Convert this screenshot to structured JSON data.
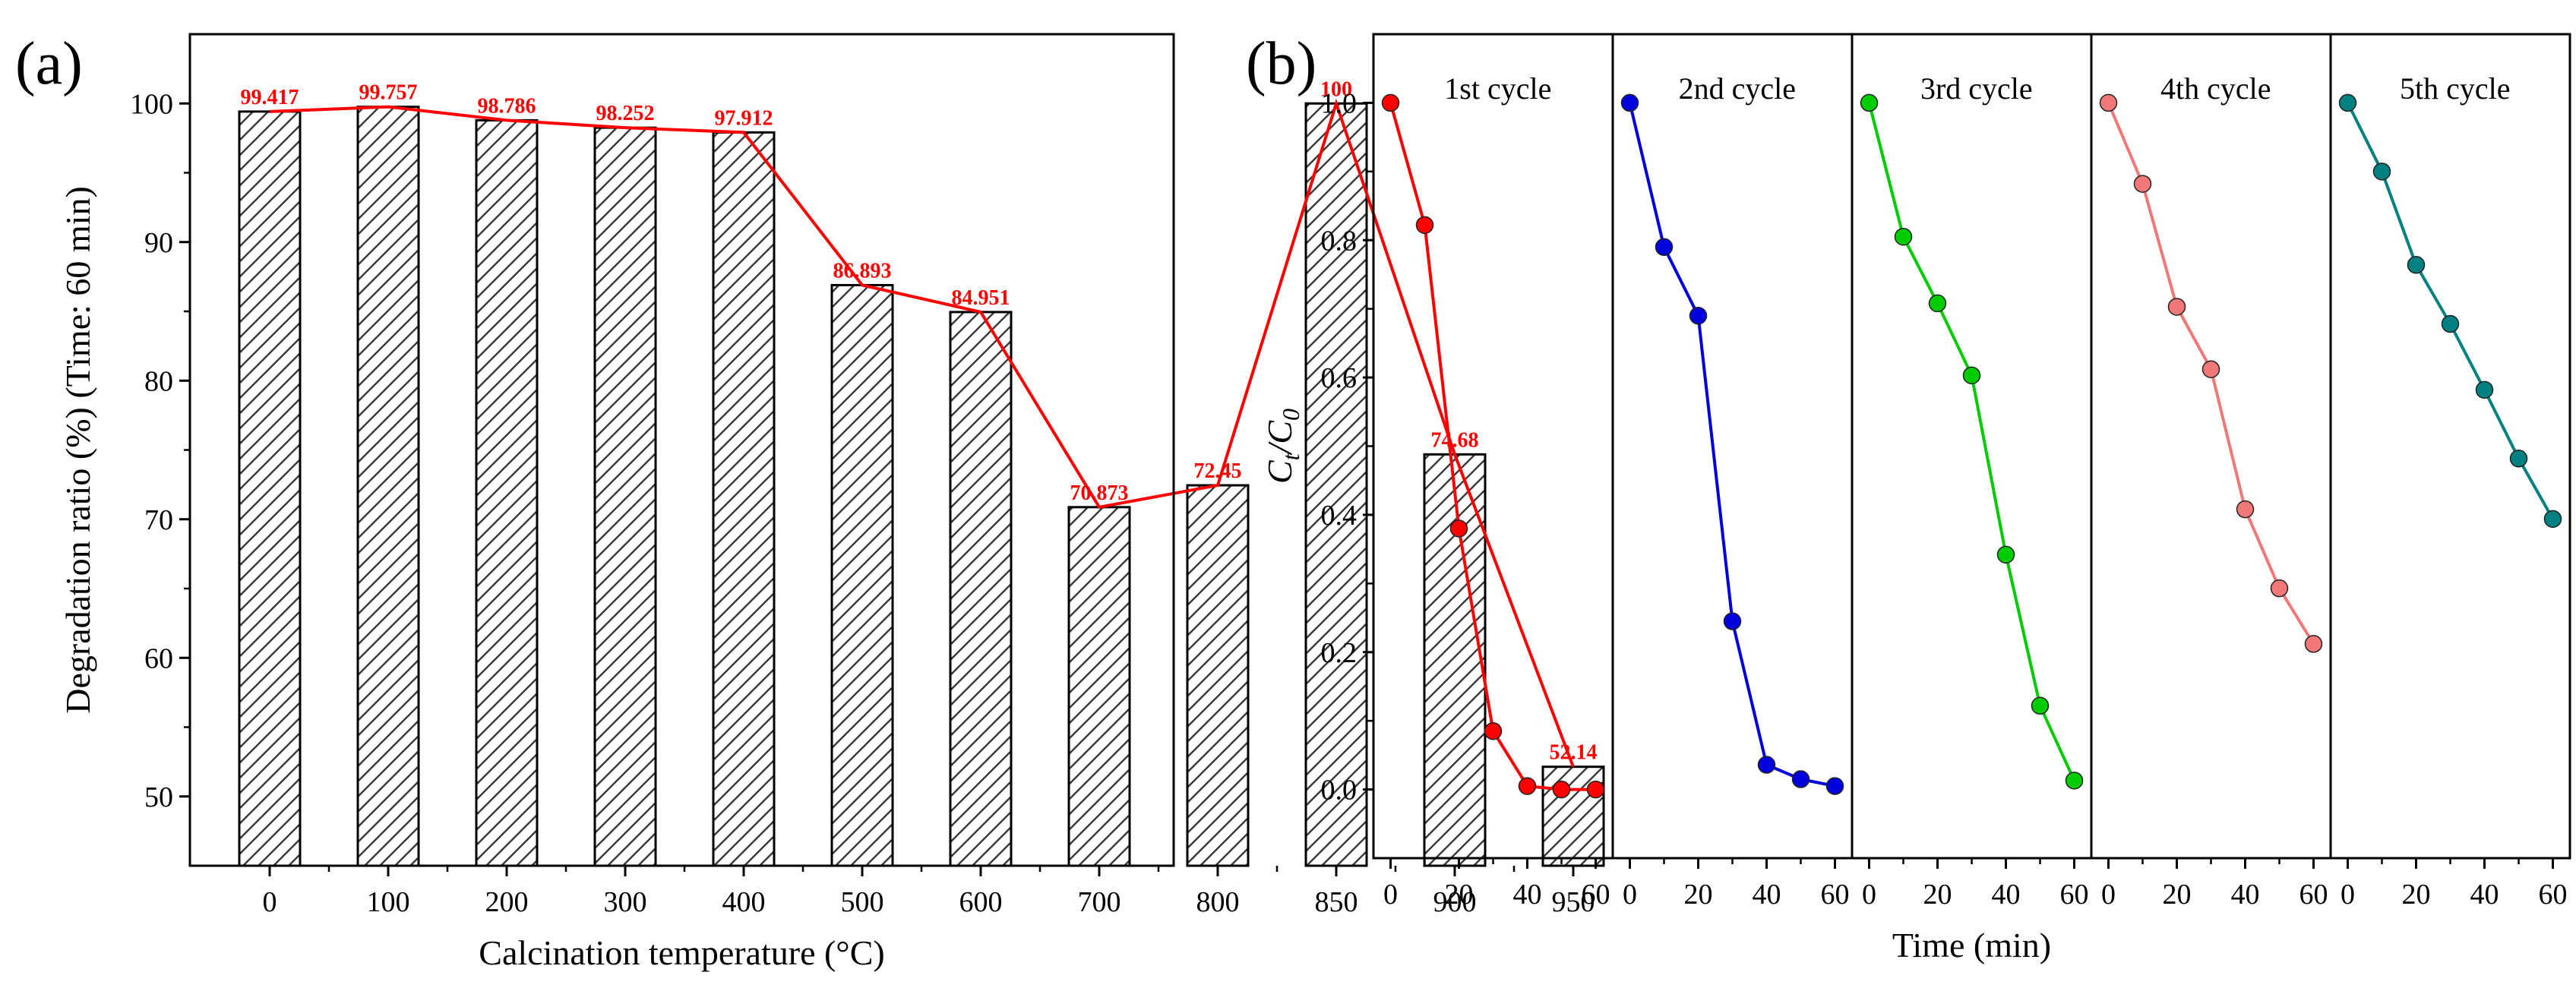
{
  "figure": {
    "panel_a_label": "(a)",
    "panel_b_label": "(b)"
  },
  "chart_data": [
    {
      "type": "bar",
      "panel": "(a)",
      "xlabel": "Calcination temperature (°C)",
      "ylabel": "Degradation ratio (%) (Time: 60 min)",
      "ylim": [
        45,
        105
      ],
      "yticks": [
        50,
        60,
        70,
        80,
        90,
        100
      ],
      "categories": [
        "0",
        "100",
        "200",
        "300",
        "400",
        "500",
        "600",
        "700",
        "800",
        "850",
        "900",
        "950"
      ],
      "values": [
        99.417,
        99.757,
        98.786,
        98.252,
        97.912,
        86.893,
        84.951,
        70.873,
        72.45,
        100,
        74.68,
        52.14
      ],
      "data_labels": [
        "99.417",
        "99.757",
        "98.786",
        "98.252",
        "97.912",
        "86.893",
        "84.951",
        "70.873",
        "72.45",
        "100",
        "74.68",
        "52.14"
      ],
      "bar_fill": "hatched",
      "line_overlay": true,
      "line_color": "#ff0000",
      "label_color": "#ff0000",
      "grid": false
    },
    {
      "type": "line",
      "panel": "(b)",
      "xlabel": "Time (min)",
      "ylabel": "C",
      "ylabel_sub_1": "t",
      "ylabel_sep": "/C",
      "ylabel_sub_2": "0",
      "ylim": [
        -0.1,
        1.1
      ],
      "yticks": [
        "0.0",
        "0.2",
        "0.4",
        "0.6",
        "0.8",
        "1.0"
      ],
      "xlim": [
        -5,
        65
      ],
      "xticks": [
        "0",
        "20",
        "40",
        "60"
      ],
      "x": [
        0,
        10,
        20,
        30,
        40,
        50,
        60
      ],
      "grid": false,
      "series": [
        {
          "name": "1st cycle",
          "color": "#ff0000",
          "values": [
            1.0,
            0.822,
            0.38,
            0.085,
            0.005,
            0.0,
            0.0
          ]
        },
        {
          "name": "2nd cycle",
          "color": "#0000dd",
          "values": [
            1.0,
            0.79,
            0.69,
            0.245,
            0.036,
            0.015,
            0.005
          ]
        },
        {
          "name": "3rd cycle",
          "color": "#00cc00",
          "values": [
            1.0,
            0.805,
            0.708,
            0.603,
            0.342,
            0.122,
            0.013
          ]
        },
        {
          "name": "4th cycle",
          "color": "#f07878",
          "values": [
            1.0,
            0.882,
            0.703,
            0.612,
            0.408,
            0.293,
            0.212
          ]
        },
        {
          "name": "5th cycle",
          "color": "#008080",
          "values": [
            1.0,
            0.9,
            0.764,
            0.678,
            0.582,
            0.482,
            0.394
          ]
        }
      ]
    }
  ]
}
